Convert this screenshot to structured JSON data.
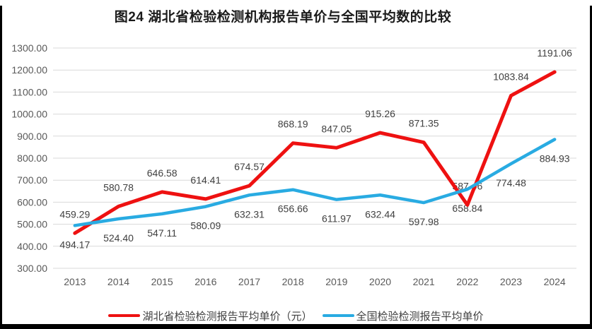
{
  "chart_data": {
    "type": "line",
    "title": "图24 湖北省检验检测机构报告单价与全国平均数的比较",
    "categories": [
      "2013",
      "2014",
      "2015",
      "2016",
      "2017",
      "2018",
      "2019",
      "2020",
      "2021",
      "2022",
      "2023",
      "2024"
    ],
    "series": [
      {
        "name": "湖北省检验检测报告平均单价（元）",
        "color": "#ee1111",
        "label_position": "above",
        "values": [
          459.29,
          580.78,
          646.58,
          614.41,
          674.57,
          868.19,
          847.05,
          915.26,
          871.35,
          587.46,
          1083.84,
          1191.06
        ]
      },
      {
        "name": "全国检验检测报告平均单价",
        "color": "#29abe2",
        "label_position": "below",
        "values": [
          494.17,
          524.4,
          547.11,
          580.09,
          632.31,
          656.66,
          611.97,
          632.44,
          597.98,
          658.84,
          774.48,
          884.93
        ]
      }
    ],
    "ylim": [
      300,
      1300
    ],
    "ytick_step": 100,
    "ytick_decimals": 2,
    "grid": true,
    "legend_position": "bottom",
    "colors": {
      "gridline": "#d9d9d9",
      "tick_text": "#595959",
      "data_label": "#404040",
      "title_text": "#1a1a1a"
    }
  }
}
